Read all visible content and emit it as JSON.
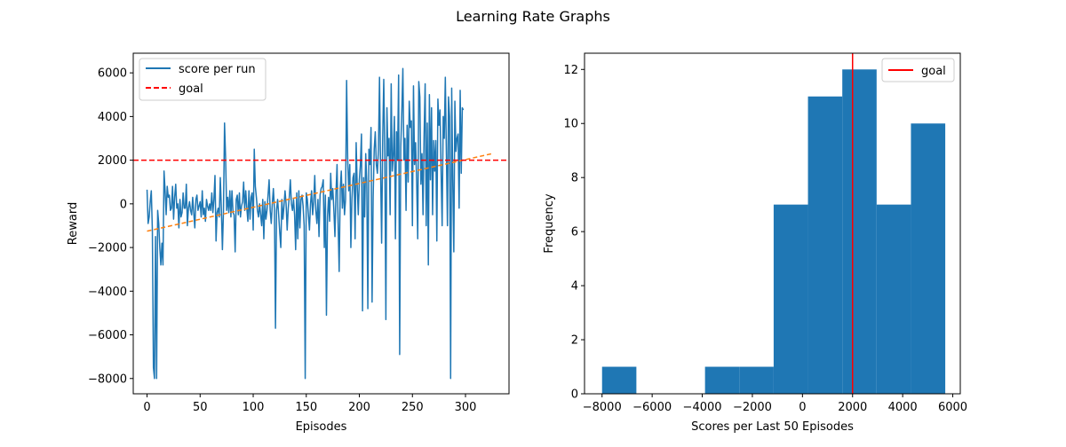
{
  "figure": {
    "suptitle": "Learning Rate Graphs"
  },
  "chart_data": [
    {
      "type": "line",
      "xlabel": "Episodes",
      "ylabel": "Reward",
      "xlim": [
        -13,
        341
      ],
      "ylim": [
        -8700,
        6900
      ],
      "xticks": [
        0,
        50,
        100,
        150,
        200,
        250,
        300
      ],
      "yticks": [
        -8000,
        -6000,
        -4000,
        -2000,
        0,
        2000,
        4000,
        6000
      ],
      "legend_position": "upper-left",
      "colors": {
        "score": "#1f77b4",
        "goal": "#ff0000",
        "trend": "#ff7f0e"
      },
      "series": [
        {
          "name": "score per run",
          "x_start": 0,
          "x_step": 1,
          "values": [
            650,
            -900,
            -600,
            100,
            600,
            -1200,
            -7500,
            -8000,
            -1500,
            -8000,
            -300,
            -900,
            -2000,
            -2800,
            -1800,
            -2800,
            1500,
            600,
            -500,
            800,
            300,
            400,
            -300,
            -200,
            800,
            -700,
            300,
            900,
            -200,
            0,
            -1100,
            200,
            -600,
            -400,
            500,
            -200,
            -200,
            900,
            -1000,
            -200,
            100,
            -300,
            -500,
            300,
            -400,
            -1100,
            200,
            400,
            -300,
            -100,
            100,
            -600,
            600,
            -500,
            -200,
            -800,
            200,
            -100,
            -300,
            0,
            -300,
            500,
            -400,
            200,
            1300,
            -1700,
            -400,
            -200,
            -600,
            1200,
            -200,
            -2100,
            -300,
            3700,
            2100,
            -300,
            300,
            -400,
            600,
            -600,
            600,
            -400,
            -500,
            -2200,
            200,
            400,
            -500,
            500,
            -600,
            -100,
            100,
            1000,
            -300,
            600,
            -200,
            -800,
            600,
            -700,
            300,
            500,
            -1200,
            2500,
            800,
            300,
            -300,
            -600,
            0,
            -500,
            -1000,
            200,
            -1600,
            100,
            -700,
            -300,
            400,
            1100,
            -300,
            -900,
            0,
            700,
            -200,
            -5700,
            -300,
            200,
            -500,
            -1300,
            -2000,
            200,
            -700,
            -100,
            600,
            0,
            -1200,
            -200,
            300,
            1100,
            0,
            -300,
            200,
            -500,
            -2100,
            500,
            -1600,
            600,
            -1100,
            200,
            400,
            -100,
            -1000,
            -8000,
            500,
            200,
            -500,
            -1200,
            0,
            600,
            -500,
            100,
            1300,
            -300,
            -900,
            200,
            -1500,
            400,
            700,
            800,
            1100,
            -2000,
            400,
            -5100,
            -600,
            300,
            -800,
            1400,
            200,
            700,
            -300,
            -1500,
            500,
            1800,
            -900,
            -3100,
            700,
            1500,
            -200,
            900,
            -500,
            200,
            5650,
            2100,
            600,
            1800,
            -2000,
            200,
            1200,
            1400,
            -1600,
            2800,
            800,
            -500,
            1100,
            1800,
            3200,
            -4900,
            1200,
            -600,
            2300,
            1000,
            -4800,
            2500,
            1800,
            3500,
            -4500,
            300,
            2500,
            3300,
            1800,
            1400,
            2500,
            5800,
            1600,
            -1800,
            3000,
            5700,
            2200,
            -5300,
            4400,
            2200,
            3000,
            -500,
            5500,
            1500,
            2200,
            4000,
            -1600,
            3300,
            2000,
            5900,
            -6900,
            2600,
            4200,
            6200,
            2000,
            3000,
            -300,
            3600,
            1000,
            4700,
            3500,
            3800,
            -1000,
            5400,
            1800,
            2800,
            1000,
            -1600,
            5600,
            4900,
            900,
            2300,
            -500,
            3200,
            5500,
            -1000,
            3700,
            -2800,
            5000,
            1100,
            4400,
            -500,
            2900,
            1500,
            2900,
            -1700,
            4800,
            3600,
            4300,
            1500,
            -1000,
            4000,
            3000,
            5800,
            2300,
            -1000,
            4900,
            4000,
            -8000,
            5300,
            1100,
            -2200,
            4700,
            2400,
            3000,
            3200,
            -200,
            5200,
            1400,
            4400,
            4300
          ]
        },
        {
          "name": "goal",
          "y": 2000
        },
        {
          "trend": {
            "x": [
              0,
              325
            ],
            "y": [
              -1250,
              2300
            ]
          }
        }
      ]
    },
    {
      "type": "bar",
      "xlabel": "Scores per Last 50 Episodes",
      "ylabel": "Frequency",
      "xlim": [
        -8700,
        6300
      ],
      "ylim": [
        0,
        12.6
      ],
      "xticks": [
        -8000,
        -6000,
        -4000,
        -2000,
        0,
        2000,
        4000,
        6000
      ],
      "yticks": [
        0,
        2,
        4,
        6,
        8,
        10,
        12
      ],
      "legend_position": "upper-right",
      "colors": {
        "bars": "#1f77b4",
        "goal": "#ff0000"
      },
      "bin_edges": [
        -8000,
        -6630,
        -5260,
        -3890,
        -2520,
        -1150,
        220,
        1590,
        2960,
        4330,
        5700
      ],
      "values": [
        1,
        0,
        0,
        1,
        1,
        7,
        11,
        12,
        7,
        10
      ],
      "series": [
        {
          "name": "goal",
          "x": 2000
        }
      ]
    }
  ]
}
